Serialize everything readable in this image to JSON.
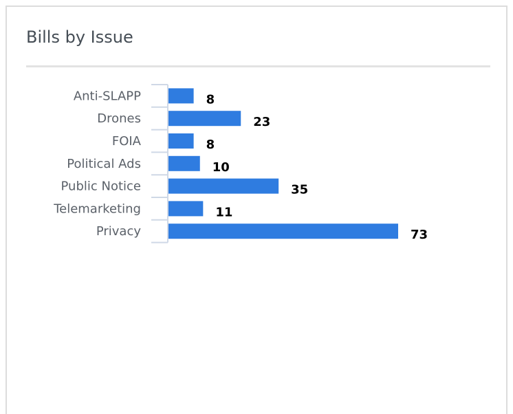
{
  "card": {
    "title": "Bills by Issue"
  },
  "colors": {
    "bar": "#2f7ce0",
    "axis": "#cfd8e6",
    "title": "#454d55",
    "category_text": "#5b6169",
    "value_text": "#000000"
  },
  "chart_data": {
    "type": "bar",
    "orientation": "horizontal",
    "title": "Bills by Issue",
    "categories": [
      "Anti-SLAPP",
      "Drones",
      "FOIA",
      "Political Ads",
      "Public Notice",
      "Telemarketing",
      "Privacy"
    ],
    "values": [
      8,
      23,
      8,
      10,
      35,
      11,
      73
    ],
    "data_labels": [
      "8",
      "23",
      "8",
      "10",
      "35",
      "11",
      "73"
    ],
    "xlabel": "",
    "ylabel": "",
    "xlim": [
      0,
      73
    ],
    "grid": false,
    "legend": "none"
  }
}
